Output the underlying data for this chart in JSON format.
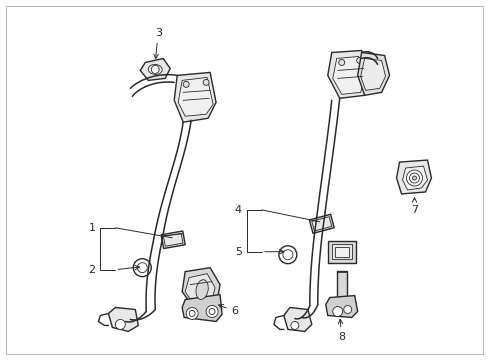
{
  "bg_color": "#ffffff",
  "line_color": "#2a2a2a",
  "fig_width": 4.89,
  "fig_height": 3.6,
  "dpi": 100,
  "border_color": "#bbbbbb",
  "lw_belt": 1.1,
  "lw_part": 1.0,
  "lw_thin": 0.6,
  "label_fs": 8,
  "arrow_lw": 0.7
}
